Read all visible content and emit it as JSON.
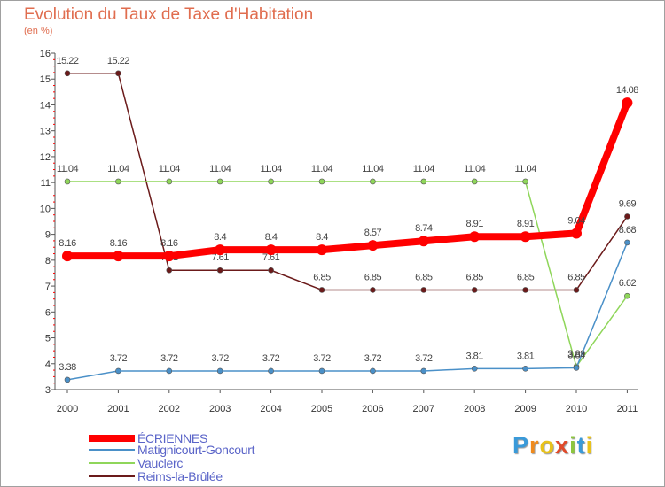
{
  "title": "Evolution du Taux de Taxe d'Habitation",
  "subtitle": "(en %)",
  "logo": {
    "text": "Proxiti",
    "letter_colors": [
      "#3a9ad9",
      "#f08a1c",
      "#e8c21c",
      "#e04a2a",
      "#8cc63f",
      "#3a9ad9",
      "#e8c21c"
    ]
  },
  "chart_data": {
    "type": "line",
    "x": [
      "2000",
      "2001",
      "2002",
      "2003",
      "2004",
      "2005",
      "2006",
      "2007",
      "2008",
      "2009",
      "2010",
      "2011"
    ],
    "ylim": [
      3,
      16
    ],
    "yticks": [
      "3",
      "4",
      "5",
      "6",
      "7",
      "8",
      "9",
      "10",
      "11",
      "12",
      "13",
      "14",
      "15",
      "16"
    ],
    "grid": false,
    "legend_position": "bottom-left",
    "series": [
      {
        "name": "Reims-la-Brûlée",
        "color": "#6b1a1a",
        "values": [
          15.22,
          15.22,
          7.61,
          7.61,
          7.61,
          6.85,
          6.85,
          6.85,
          6.85,
          6.85,
          6.85,
          9.69
        ],
        "labels": [
          "15.22",
          "15.22",
          "7.61",
          "7.61",
          "7.61",
          "6.85",
          "6.85",
          "6.85",
          "6.85",
          "6.85",
          "6.85",
          "9.69"
        ]
      },
      {
        "name": "Vauclerc",
        "color": "#8fd65a",
        "values": [
          11.04,
          11.04,
          11.04,
          11.04,
          11.04,
          11.04,
          11.04,
          11.04,
          11.04,
          11.04,
          3.89,
          6.62
        ],
        "labels": [
          "11.04",
          "11.04",
          "11.04",
          "11.04",
          "11.04",
          "11.04",
          "11.04",
          "11.04",
          "11.04",
          "11.04",
          "3.89",
          "6.62"
        ]
      },
      {
        "name": "Matignicourt-Goncourt",
        "color": "#4a90c8",
        "values": [
          3.38,
          3.72,
          3.72,
          3.72,
          3.72,
          3.72,
          3.72,
          3.72,
          3.81,
          3.81,
          3.84,
          8.68
        ],
        "labels": [
          "3.38",
          "3.72",
          "3.72",
          "3.72",
          "3.72",
          "3.72",
          "3.72",
          "3.72",
          "3.81",
          "3.81",
          "3.84",
          "8.68"
        ]
      },
      {
        "name": "ÉCRIENNES",
        "color": "#ff0000",
        "values": [
          8.16,
          8.16,
          8.16,
          8.4,
          8.4,
          8.4,
          8.57,
          8.74,
          8.91,
          8.91,
          9.04,
          14.08
        ],
        "labels": [
          "8.16",
          "8.16",
          "8.16",
          "8.4",
          "8.4",
          "8.4",
          "8.57",
          "8.74",
          "8.91",
          "8.91",
          "9.04",
          "14.08"
        ]
      }
    ],
    "legend": [
      {
        "name": "ÉCRIENNES",
        "color": "#ff0000"
      },
      {
        "name": "Matignicourt-Goncourt",
        "color": "#4a90c8"
      },
      {
        "name": "Vauclerc",
        "color": "#8fd65a"
      },
      {
        "name": "Reims-la-Brûlée",
        "color": "#6b1a1a"
      }
    ]
  }
}
